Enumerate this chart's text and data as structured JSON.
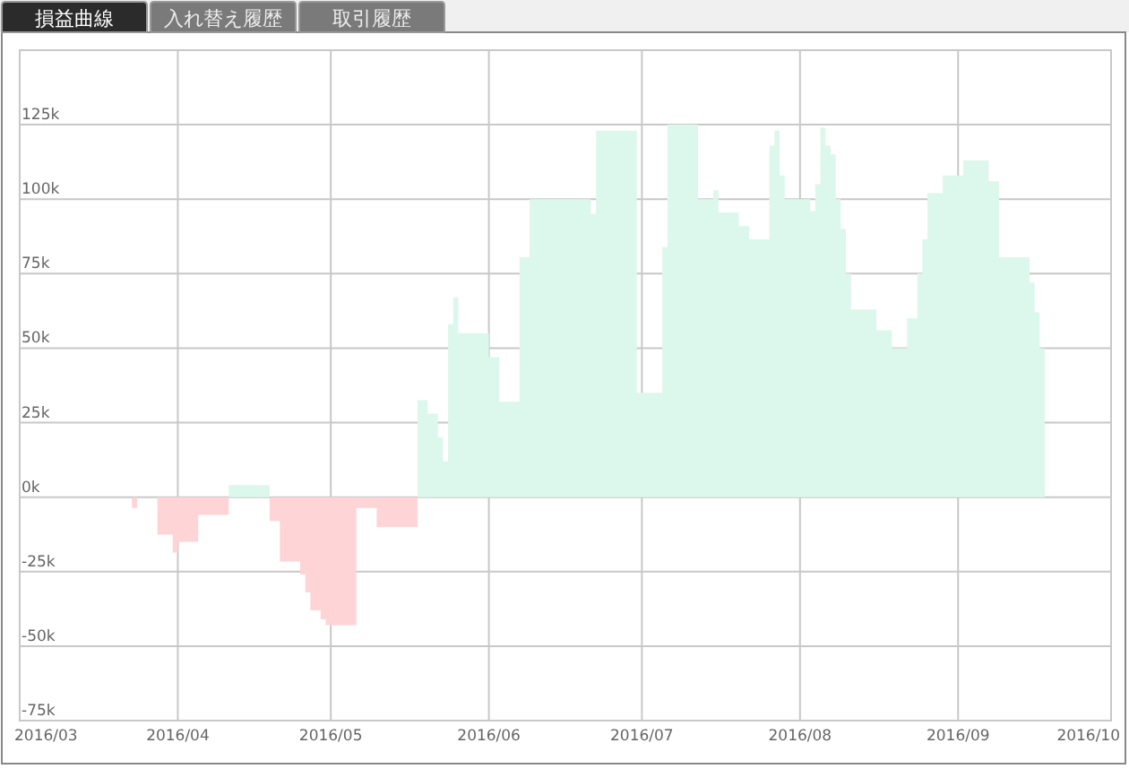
{
  "chart_data": {
    "type": "area",
    "annotations": [
      "損益曲線",
      "入れ替え履歴",
      "取引履歴"
    ],
    "xlim": [
      "2016-03",
      "2016-10"
    ],
    "ylim": [
      -75000,
      150000
    ],
    "xticks": [
      {
        "value": "2016-03",
        "label": "2016/03"
      },
      {
        "value": "2016-04",
        "label": "2016/04"
      },
      {
        "value": "2016-05",
        "label": "2016/05"
      },
      {
        "value": "2016-06",
        "label": "2016/06"
      },
      {
        "value": "2016-07",
        "label": "2016/07"
      },
      {
        "value": "2016-08",
        "label": "2016/08"
      },
      {
        "value": "2016-09",
        "label": "2016/09"
      },
      {
        "value": "2016-10",
        "label": "2016/10"
      }
    ],
    "yticks": [
      {
        "value": -75000,
        "label": "-75k"
      },
      {
        "value": -50000,
        "label": "-50k"
      },
      {
        "value": -25000,
        "label": "-25k"
      },
      {
        "value": 0,
        "label": "0k"
      },
      {
        "value": 25000,
        "label": "25k"
      },
      {
        "value": 50000,
        "label": "50k"
      },
      {
        "value": 75000,
        "label": "75k"
      },
      {
        "value": 100000,
        "label": "100k"
      },
      {
        "value": 125000,
        "label": "125k"
      }
    ],
    "grid": true,
    "series": [
      {
        "color": "#ffd4d6",
        "x": [
          "2016-03-23",
          "2016-03-23",
          "2016-03-24",
          "2016-03-24",
          "2016-03-28",
          "2016-03-28",
          "2016-03-31",
          "2016-03-31",
          "2016-04-01",
          "2016-04-01",
          "2016-04-05",
          "2016-04-05",
          "2016-04-11",
          "2016-04-11",
          "2016-04-19",
          "2016-04-19",
          "2016-04-21",
          "2016-04-21",
          "2016-04-25",
          "2016-04-25",
          "2016-04-26",
          "2016-04-26",
          "2016-04-27",
          "2016-04-27",
          "2016-04-29",
          "2016-04-29",
          "2016-04-30",
          "2016-04-30",
          "2016-05-06",
          "2016-05-06",
          "2016-05-10",
          "2016-05-10",
          "2016-05-18",
          "2016-05-18"
        ],
        "values": [
          0,
          -3600,
          -3600,
          0,
          0,
          -12600,
          -12600,
          -18600,
          -18600,
          -15000,
          -15000,
          -6000,
          -6000,
          0,
          0,
          -8000,
          -8000,
          -21600,
          -21600,
          -26000,
          -26000,
          -32000,
          -32000,
          -38000,
          -38000,
          -41000,
          -41000,
          -43000,
          -43000,
          -3600,
          -3600,
          -10000,
          -10000,
          0
        ]
      },
      {
        "color": "#dcf7ec",
        "x": [
          "2016-04-11",
          "2016-04-11",
          "2016-04-19",
          "2016-04-19",
          "2016-05-18",
          "2016-05-18",
          "2016-05-20",
          "2016-05-20",
          "2016-05-22",
          "2016-05-22",
          "2016-05-23",
          "2016-05-23",
          "2016-05-24",
          "2016-05-24",
          "2016-05-25",
          "2016-05-25",
          "2016-05-26",
          "2016-05-26",
          "2016-06-01",
          "2016-06-01",
          "2016-06-03",
          "2016-06-03",
          "2016-06-07",
          "2016-06-07",
          "2016-06-09",
          "2016-06-09",
          "2016-06-21",
          "2016-06-21",
          "2016-06-22",
          "2016-06-22",
          "2016-06-30",
          "2016-06-30",
          "2016-07-05",
          "2016-07-05",
          "2016-07-06",
          "2016-07-06",
          "2016-07-12",
          "2016-07-12",
          "2016-07-15",
          "2016-07-15",
          "2016-07-16",
          "2016-07-16",
          "2016-07-20",
          "2016-07-20",
          "2016-07-22",
          "2016-07-22",
          "2016-07-26",
          "2016-07-26",
          "2016-07-27",
          "2016-07-27",
          "2016-07-28",
          "2016-07-28",
          "2016-07-29",
          "2016-07-29",
          "2016-08-03",
          "2016-08-03",
          "2016-08-04",
          "2016-08-04",
          "2016-08-05",
          "2016-08-05",
          "2016-08-06",
          "2016-08-06",
          "2016-08-07",
          "2016-08-07",
          "2016-08-08",
          "2016-08-08",
          "2016-08-09",
          "2016-08-09",
          "2016-08-10",
          "2016-08-10",
          "2016-08-11",
          "2016-08-11",
          "2016-08-16",
          "2016-08-16",
          "2016-08-19",
          "2016-08-19",
          "2016-08-22",
          "2016-08-22",
          "2016-08-24",
          "2016-08-24",
          "2016-08-25",
          "2016-08-25",
          "2016-08-26",
          "2016-08-26",
          "2016-08-29",
          "2016-08-29",
          "2016-09-02",
          "2016-09-02",
          "2016-09-07",
          "2016-09-07",
          "2016-09-09",
          "2016-09-09",
          "2016-09-15",
          "2016-09-15",
          "2016-09-16",
          "2016-09-16",
          "2016-09-17",
          "2016-09-17",
          "2016-09-18",
          "2016-09-18"
        ],
        "values": [
          0,
          4000,
          4000,
          0,
          0,
          32500,
          32500,
          28000,
          28000,
          20000,
          20000,
          12000,
          12000,
          58000,
          58000,
          67000,
          67000,
          55000,
          55000,
          47000,
          47000,
          32000,
          32000,
          80500,
          80500,
          100000,
          100000,
          95000,
          95000,
          123000,
          123000,
          35000,
          35000,
          84000,
          84000,
          125000,
          125000,
          100000,
          100000,
          103000,
          103000,
          95500,
          95500,
          91000,
          91000,
          86500,
          86500,
          118000,
          118000,
          123000,
          123000,
          108000,
          108000,
          100000,
          100000,
          96000,
          96000,
          105000,
          105000,
          124000,
          124000,
          118000,
          118000,
          115000,
          115000,
          100000,
          100000,
          90000,
          90000,
          75000,
          75000,
          63000,
          63000,
          56000,
          56000,
          50000,
          50000,
          60000,
          60000,
          75000,
          75000,
          86500,
          86500,
          102000,
          102000,
          108000,
          108000,
          113000,
          113000,
          106000,
          106000,
          80500,
          80500,
          72000,
          72000,
          62000,
          62000,
          50000,
          50000,
          0
        ]
      }
    ]
  }
}
